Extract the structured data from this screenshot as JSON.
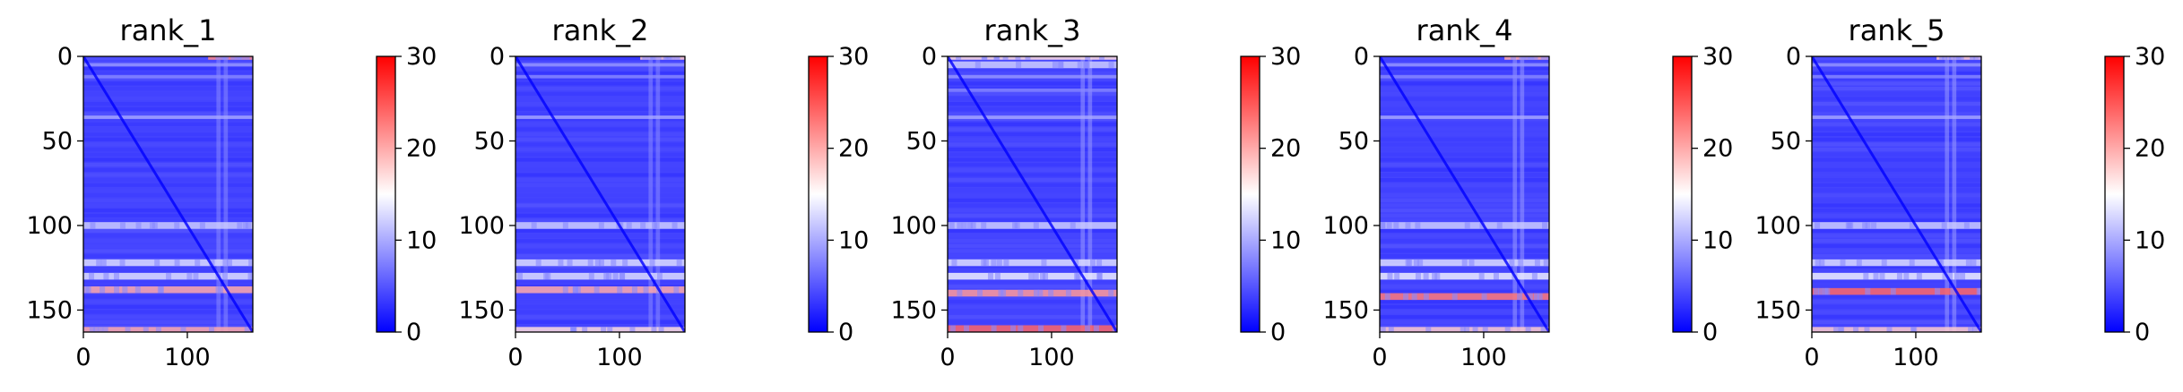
{
  "chart_data": [
    {
      "type": "heatmap",
      "title": "rank_1",
      "x_range": [
        0,
        163
      ],
      "y_range": [
        0,
        163
      ],
      "x_ticks": [
        "0",
        "100"
      ],
      "y_ticks": [
        "0",
        "50",
        "100",
        "150"
      ],
      "colorbar": {
        "min": 0,
        "max": 30,
        "ticks": [
          "0",
          "10",
          "20",
          "30"
        ],
        "colormap": "bwr"
      },
      "features": {
        "diagonal_value": 0,
        "background_value": 4,
        "high_rows": [
          {
            "y": 0,
            "value": 22,
            "x_from": 120,
            "x_to": 163
          },
          {
            "y": 100,
            "value": 12
          },
          {
            "y": 122,
            "value": 13
          },
          {
            "y": 130,
            "value": 13
          },
          {
            "y": 138,
            "value": 20
          },
          {
            "y": 162,
            "value": 20
          }
        ],
        "light_rows": [
          {
            "y": 5,
            "value": 9
          },
          {
            "y": 12,
            "value": 8
          },
          {
            "y": 36,
            "value": 10
          }
        ],
        "light_columns": [
          {
            "x": 130,
            "value": 8
          },
          {
            "x": 137,
            "value": 8
          }
        ]
      }
    },
    {
      "type": "heatmap",
      "title": "rank_2",
      "x_range": [
        0,
        163
      ],
      "y_range": [
        0,
        163
      ],
      "x_ticks": [
        "0",
        "100"
      ],
      "y_ticks": [
        "0",
        "50",
        "100",
        "150"
      ],
      "colorbar": {
        "min": 0,
        "max": 30,
        "ticks": [
          "0",
          "10",
          "20",
          "30"
        ],
        "colormap": "bwr"
      },
      "features": {
        "diagonal_value": 0,
        "background_value": 4,
        "high_rows": [
          {
            "y": 0,
            "value": 18,
            "x_from": 120,
            "x_to": 163
          },
          {
            "y": 100,
            "value": 12
          },
          {
            "y": 122,
            "value": 13
          },
          {
            "y": 130,
            "value": 13
          },
          {
            "y": 138,
            "value": 20
          },
          {
            "y": 162,
            "value": 17
          }
        ],
        "light_rows": [
          {
            "y": 5,
            "value": 9
          },
          {
            "y": 12,
            "value": 8
          },
          {
            "y": 36,
            "value": 10
          }
        ],
        "light_columns": [
          {
            "x": 130,
            "value": 8
          },
          {
            "x": 137,
            "value": 8
          }
        ]
      }
    },
    {
      "type": "heatmap",
      "title": "rank_3",
      "x_range": [
        0,
        163
      ],
      "y_range": [
        0,
        163
      ],
      "x_ticks": [
        "0",
        "100"
      ],
      "y_ticks": [
        "0",
        "50",
        "100",
        "150"
      ],
      "colorbar": {
        "min": 0,
        "max": 30,
        "ticks": [
          "0",
          "10",
          "20",
          "30"
        ],
        "colormap": "bwr"
      },
      "features": {
        "diagonal_value": 0,
        "background_value": 4,
        "high_rows": [
          {
            "y": 0,
            "value": 17
          },
          {
            "y": 5,
            "value": 12
          },
          {
            "y": 100,
            "value": 12
          },
          {
            "y": 122,
            "value": 13
          },
          {
            "y": 130,
            "value": 14
          },
          {
            "y": 140,
            "value": 21
          },
          {
            "y": 161,
            "value": 24
          }
        ],
        "light_rows": [
          {
            "y": 12,
            "value": 9
          },
          {
            "y": 20,
            "value": 8
          },
          {
            "y": 36,
            "value": 10
          }
        ],
        "light_columns": [
          {
            "x": 130,
            "value": 9
          },
          {
            "x": 137,
            "value": 9
          }
        ]
      }
    },
    {
      "type": "heatmap",
      "title": "rank_4",
      "x_range": [
        0,
        163
      ],
      "y_range": [
        0,
        163
      ],
      "x_ticks": [
        "0",
        "100"
      ],
      "y_ticks": [
        "0",
        "50",
        "100",
        "150"
      ],
      "colorbar": {
        "min": 0,
        "max": 30,
        "ticks": [
          "0",
          "10",
          "20",
          "30"
        ],
        "colormap": "bwr"
      },
      "features": {
        "diagonal_value": 0,
        "background_value": 4,
        "high_rows": [
          {
            "y": 0,
            "value": 20,
            "x_from": 120,
            "x_to": 163
          },
          {
            "y": 100,
            "value": 12
          },
          {
            "y": 122,
            "value": 13
          },
          {
            "y": 130,
            "value": 14
          },
          {
            "y": 142,
            "value": 23
          },
          {
            "y": 162,
            "value": 18
          }
        ],
        "light_rows": [
          {
            "y": 5,
            "value": 9
          },
          {
            "y": 12,
            "value": 8
          },
          {
            "y": 36,
            "value": 10
          }
        ],
        "light_columns": [
          {
            "x": 130,
            "value": 9
          },
          {
            "x": 137,
            "value": 9
          }
        ]
      }
    },
    {
      "type": "heatmap",
      "title": "rank_5",
      "x_range": [
        0,
        163
      ],
      "y_range": [
        0,
        163
      ],
      "x_ticks": [
        "0",
        "100"
      ],
      "y_ticks": [
        "0",
        "50",
        "100",
        "150"
      ],
      "colorbar": {
        "min": 0,
        "max": 30,
        "ticks": [
          "0",
          "10",
          "20",
          "30"
        ],
        "colormap": "bwr"
      },
      "features": {
        "diagonal_value": 0,
        "background_value": 4,
        "high_rows": [
          {
            "y": 0,
            "value": 18,
            "x_from": 120,
            "x_to": 163
          },
          {
            "y": 100,
            "value": 12
          },
          {
            "y": 122,
            "value": 13
          },
          {
            "y": 130,
            "value": 14
          },
          {
            "y": 139,
            "value": 24
          },
          {
            "y": 162,
            "value": 18
          }
        ],
        "light_rows": [
          {
            "y": 5,
            "value": 9
          },
          {
            "y": 12,
            "value": 8
          },
          {
            "y": 36,
            "value": 10
          }
        ],
        "light_columns": [
          {
            "x": 130,
            "value": 9
          },
          {
            "x": 137,
            "value": 9
          }
        ]
      }
    }
  ]
}
